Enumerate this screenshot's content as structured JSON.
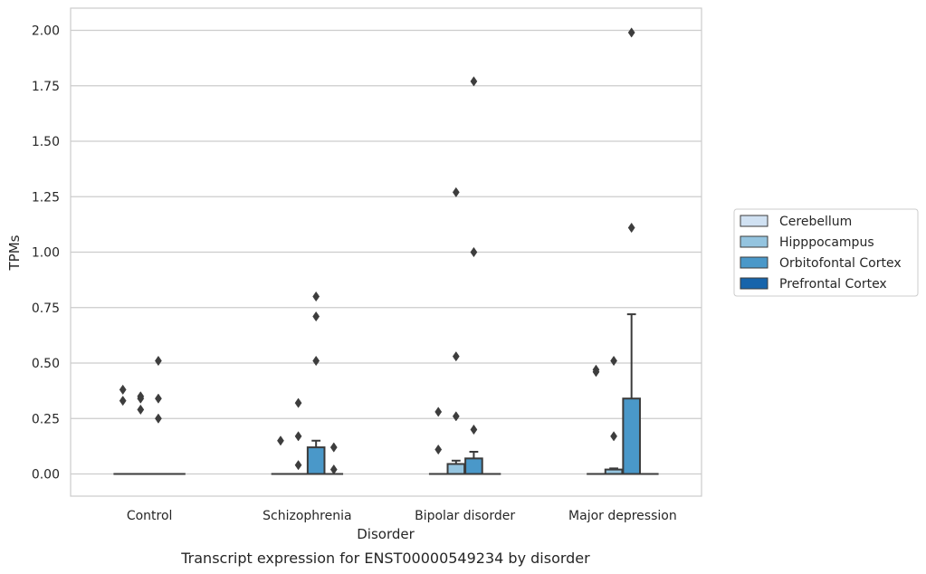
{
  "chart_data": {
    "type": "box",
    "title": "",
    "caption": "Transcript expression for ENST00000549234 by disorder",
    "xlabel": "Disorder",
    "ylabel": "TPMs",
    "ylim": [
      -0.1,
      2.1
    ],
    "yticks": [
      0.0,
      0.25,
      0.5,
      0.75,
      1.0,
      1.25,
      1.5,
      1.75,
      2.0
    ],
    "ytick_labels": [
      "0.00",
      "0.25",
      "0.50",
      "0.75",
      "1.00",
      "1.25",
      "1.50",
      "1.75",
      "2.00"
    ],
    "grid": "horizontal",
    "legend_position": "right",
    "categories": [
      "Control",
      "Schizophrenia",
      "Bipolar disorder",
      "Major depression"
    ],
    "series": [
      {
        "name": "Cerebellum",
        "color": "#d0e1f2",
        "boxes": [
          {
            "q1": 0,
            "median": 0,
            "q3": 0,
            "whisker_low": 0,
            "whisker_high": 0,
            "outliers": [
              0.38,
              0.33
            ]
          },
          {
            "q1": 0,
            "median": 0,
            "q3": 0,
            "whisker_low": 0,
            "whisker_high": 0,
            "outliers": [
              0.15
            ]
          },
          {
            "q1": 0,
            "median": 0,
            "q3": 0,
            "whisker_low": 0,
            "whisker_high": 0,
            "outliers": [
              0.28,
              0.11
            ]
          },
          {
            "q1": 0,
            "median": 0,
            "q3": 0,
            "whisker_low": 0,
            "whisker_high": 0,
            "outliers": [
              0.47,
              0.46
            ]
          }
        ]
      },
      {
        "name": "Hipppocampus",
        "color": "#94c4df",
        "boxes": [
          {
            "q1": 0,
            "median": 0,
            "q3": 0,
            "whisker_low": 0,
            "whisker_high": 0,
            "outliers": [
              0.35,
              0.34,
              0.29
            ]
          },
          {
            "q1": 0,
            "median": 0,
            "q3": 0,
            "whisker_low": 0,
            "whisker_high": 0,
            "outliers": [
              0.32,
              0.17,
              0.04
            ]
          },
          {
            "q1": 0,
            "median": 0,
            "q3": 0.045,
            "whisker_low": 0,
            "whisker_high": 0.06,
            "outliers": [
              1.27,
              0.53,
              0.26
            ]
          },
          {
            "q1": 0,
            "median": 0,
            "q3": 0.02,
            "whisker_low": 0,
            "whisker_high": 0.025,
            "outliers": [
              0.17,
              0.51
            ]
          }
        ]
      },
      {
        "name": "Orbitofontal Cortex",
        "color": "#4a98c9",
        "boxes": [
          {
            "q1": 0,
            "median": 0,
            "q3": 0,
            "whisker_low": 0,
            "whisker_high": 0,
            "outliers": [
              0.51,
              0.34,
              0.25
            ]
          },
          {
            "q1": 0,
            "median": 0,
            "q3": 0.12,
            "whisker_low": 0,
            "whisker_high": 0.15,
            "outliers": [
              0.8,
              0.71,
              0.51
            ]
          },
          {
            "q1": 0,
            "median": 0,
            "q3": 0.07,
            "whisker_low": 0,
            "whisker_high": 0.1,
            "outliers": [
              1.77,
              1.0,
              0.2
            ]
          },
          {
            "q1": 0,
            "median": 0,
            "q3": 0.34,
            "whisker_low": 0,
            "whisker_high": 0.72,
            "outliers": [
              1.99,
              1.11
            ]
          }
        ]
      },
      {
        "name": "Prefrontal Cortex",
        "color": "#1764ab",
        "boxes": [
          {
            "q1": 0,
            "median": 0,
            "q3": 0,
            "whisker_low": 0,
            "whisker_high": 0,
            "outliers": []
          },
          {
            "q1": 0,
            "median": 0,
            "q3": 0,
            "whisker_low": 0,
            "whisker_high": 0,
            "outliers": [
              0.12,
              0.02
            ]
          },
          {
            "q1": 0,
            "median": 0,
            "q3": 0,
            "whisker_low": 0,
            "whisker_high": 0,
            "outliers": []
          },
          {
            "q1": 0,
            "median": 0,
            "q3": 0,
            "whisker_low": 0,
            "whisker_high": 0,
            "outliers": []
          }
        ]
      }
    ]
  }
}
